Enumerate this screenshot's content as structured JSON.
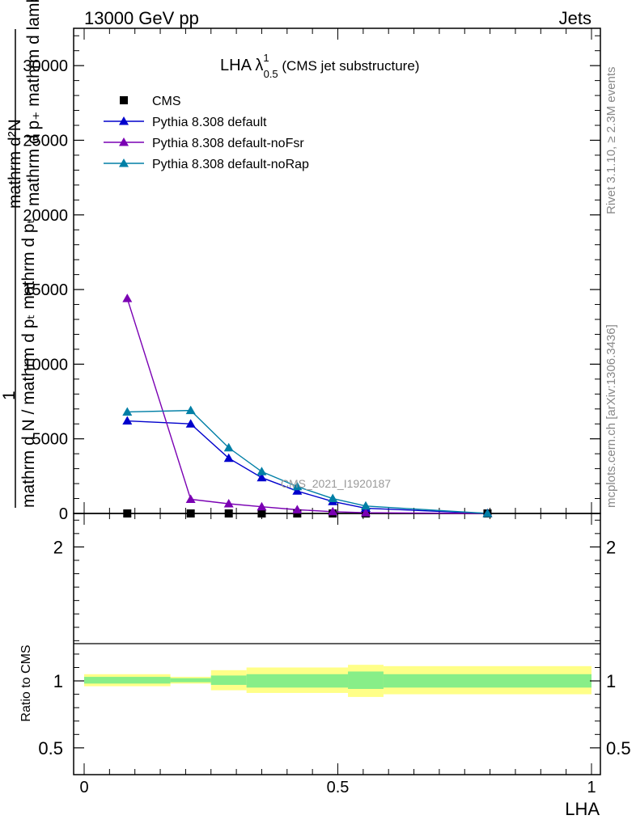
{
  "header": {
    "left": "13000 GeV pp",
    "right": "Jets"
  },
  "side_labels": {
    "rivet": "Rivet 3.1.10, ≥ 2.3M events",
    "mcplots": "mcplots.cern.ch [arXiv:1306.3436]"
  },
  "title": {
    "main": "LHA λ",
    "sup": "1",
    "sub": "0.5",
    "suffix": " (CMS jet substructure)"
  },
  "watermark": "CMS_2021_I1920187",
  "main_ylabel": {
    "numerator": "mathrm d²N",
    "line2": "mathrm d p₊ mathrm d lambda",
    "one": "1",
    "denominator": "mathrm d N / mathrm d pₜ mathrm d pₜ"
  },
  "ratio_ylabel": "Ratio to CMS",
  "xlabel": "LHA",
  "colors": {
    "cms": "#000000",
    "default": "#0000cc",
    "noFsr": "#7a00b3",
    "noRap": "#007fa6",
    "band_outer": "#ffff88",
    "band_inner": "#88ee88"
  },
  "chart_data": [
    {
      "type": "line",
      "panel": "main",
      "xlim": [
        0,
        1
      ],
      "ylim": [
        0,
        32500
      ],
      "y_ticks": [
        "0",
        "5000",
        "10000",
        "15000",
        "20000",
        "25000",
        "30000"
      ],
      "y_tick_values": [
        0,
        5000,
        10000,
        15000,
        20000,
        25000,
        30000
      ],
      "x_tick_values": [
        0,
        0.5,
        1
      ],
      "legend_position": "top-left",
      "series": [
        {
          "name": "CMS",
          "key": "cms",
          "marker": "square",
          "x": [
            0.085,
            0.21,
            0.285,
            0.35,
            0.42,
            0.49,
            0.555,
            0.795
          ],
          "y": [
            0,
            0,
            0,
            0,
            0,
            0,
            0,
            0
          ]
        },
        {
          "name": "Pythia 8.308 default",
          "key": "default",
          "marker": "triangle",
          "x": [
            0.085,
            0.21,
            0.285,
            0.35,
            0.42,
            0.49,
            0.555,
            0.795
          ],
          "y": [
            6200,
            6000,
            3700,
            2400,
            1500,
            800,
            350,
            0
          ]
        },
        {
          "name": "Pythia 8.308 default-noFsr",
          "key": "noFsr",
          "marker": "triangle",
          "x": [
            0.085,
            0.21,
            0.285,
            0.35,
            0.42,
            0.49,
            0.555,
            0.795
          ],
          "y": [
            14400,
            950,
            650,
            450,
            250,
            120,
            50,
            0
          ]
        },
        {
          "name": "Pythia 8.308 default-noRap",
          "key": "noRap",
          "marker": "triangle",
          "x": [
            0.085,
            0.21,
            0.285,
            0.35,
            0.42,
            0.49,
            0.555,
            0.795
          ],
          "y": [
            6800,
            6900,
            4400,
            2800,
            1800,
            1000,
            500,
            0
          ]
        }
      ]
    },
    {
      "type": "area",
      "panel": "ratio",
      "xlim": [
        0,
        1
      ],
      "ylim": [
        0.3,
        2.25
      ],
      "y_ticks": [
        "0.5",
        "1",
        "2"
      ],
      "y_tick_values": [
        0.5,
        1,
        2
      ],
      "x_ticks": [
        "0",
        "0.5",
        "1"
      ],
      "x_tick_values": [
        0,
        0.5,
        1
      ],
      "reference_line": 1,
      "bins": [
        {
          "x0": 0.0,
          "x1": 0.17,
          "outer": [
            0.96,
            1.05
          ],
          "inner": [
            0.98,
            1.03
          ]
        },
        {
          "x0": 0.17,
          "x1": 0.25,
          "outer": [
            0.98,
            1.03
          ],
          "inner": [
            0.99,
            1.02
          ]
        },
        {
          "x0": 0.25,
          "x1": 0.32,
          "outer": [
            0.93,
            1.08
          ],
          "inner": [
            0.97,
            1.04
          ]
        },
        {
          "x0": 0.32,
          "x1": 0.52,
          "outer": [
            0.91,
            1.1
          ],
          "inner": [
            0.95,
            1.05
          ]
        },
        {
          "x0": 0.52,
          "x1": 0.59,
          "outer": [
            0.88,
            1.12
          ],
          "inner": [
            0.94,
            1.07
          ]
        },
        {
          "x0": 0.59,
          "x1": 1.0,
          "outer": [
            0.9,
            1.11
          ],
          "inner": [
            0.95,
            1.05
          ]
        }
      ]
    }
  ]
}
